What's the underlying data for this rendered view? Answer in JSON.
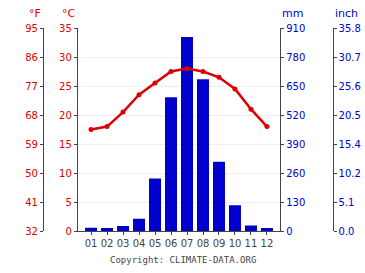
{
  "chart_data": {
    "type": "combo",
    "categories": [
      "01",
      "02",
      "03",
      "04",
      "05",
      "06",
      "07",
      "08",
      "09",
      "10",
      "11",
      "12"
    ],
    "series": [
      {
        "type": "bar",
        "color": "#0000cc",
        "axis": "y2",
        "values": [
          15,
          13,
          22,
          55,
          235,
          600,
          870,
          680,
          310,
          115,
          25,
          13
        ]
      },
      {
        "type": "line",
        "color": "#dd0000",
        "marker": "circle",
        "values": [
          17.5,
          18.0,
          20.5,
          23.5,
          25.5,
          27.5,
          28.0,
          27.5,
          26.5,
          24.5,
          21.0,
          18.0
        ]
      }
    ],
    "ylabel": "°C",
    "ylim": [
      0,
      35
    ],
    "yticks": [
      0,
      5,
      10,
      15,
      20,
      25,
      30,
      35
    ],
    "y2label": "mm",
    "y2lim": [
      0,
      910
    ],
    "y2ticks": [
      0,
      130,
      260,
      390,
      520,
      650,
      780,
      910
    ],
    "y3label": "°F",
    "y3lim": [
      32,
      95
    ],
    "y3ticks": [
      32,
      41,
      50,
      59,
      68,
      77,
      86,
      95
    ],
    "y4label": "inch",
    "y4lim": [
      0,
      910
    ],
    "y4ticks": [
      {
        "value": 0,
        "label": "0.0"
      },
      {
        "value": 130,
        "label": "5.1"
      },
      {
        "value": 260,
        "label": "10.2"
      },
      {
        "value": 390,
        "label": "15.4"
      },
      {
        "value": 520,
        "label": "20.5"
      },
      {
        "value": 650,
        "label": "25.6"
      },
      {
        "value": 780,
        "label": "30.7"
      },
      {
        "value": 910,
        "label": "35.8"
      }
    ],
    "grid": true,
    "annotations": [
      {
        "text": "Copyright: CLIMATE-DATA.ORG"
      }
    ]
  }
}
